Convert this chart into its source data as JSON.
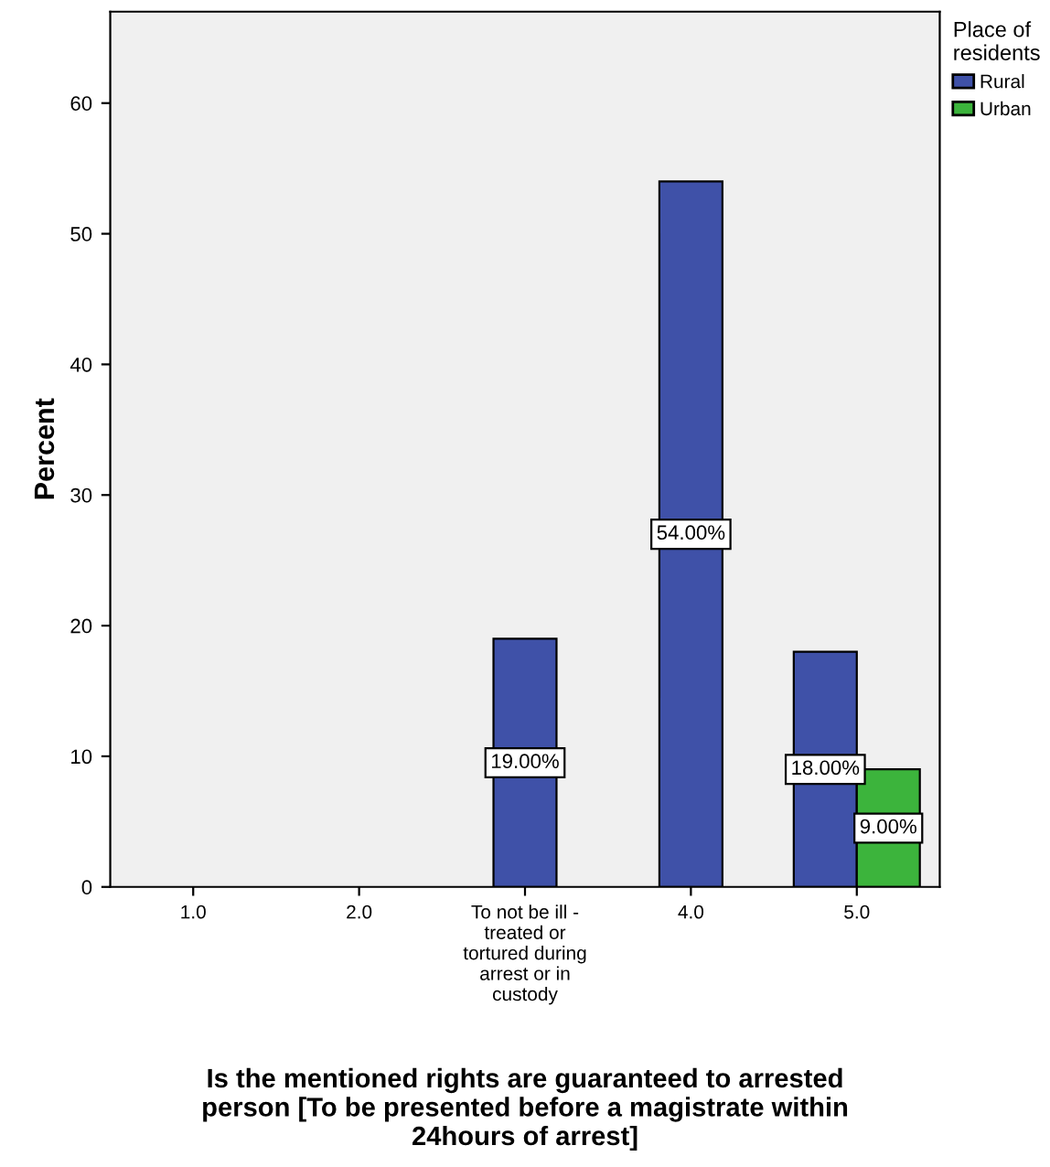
{
  "chart_data": {
    "type": "bar",
    "xlabel": "Is the mentioned rights are guaranteed to arrested\nperson [To be presented before a magistrate within\n24hours of arrest]",
    "ylabel": "Percent",
    "legend_title": "Place of\nresidents",
    "categories": [
      "1.0",
      "2.0",
      "To not be ill -\ntreated or\ntortured during\narrest or in\ncustody",
      "4.0",
      "5.0"
    ],
    "series": [
      {
        "name": "Rural",
        "color": "#3f51a8",
        "values": [
          null,
          null,
          19,
          54,
          18
        ],
        "value_labels": [
          null,
          null,
          "19.00%",
          "54.00%",
          "18.00%"
        ]
      },
      {
        "name": "Urban",
        "color": "#3cb43c",
        "values": [
          null,
          null,
          null,
          null,
          9
        ],
        "value_labels": [
          null,
          null,
          null,
          null,
          "9.00%"
        ]
      }
    ],
    "ylim": [
      0,
      67
    ],
    "yticks": [
      0,
      10,
      20,
      30,
      40,
      50,
      60
    ],
    "grid": false,
    "legend": "top right"
  }
}
